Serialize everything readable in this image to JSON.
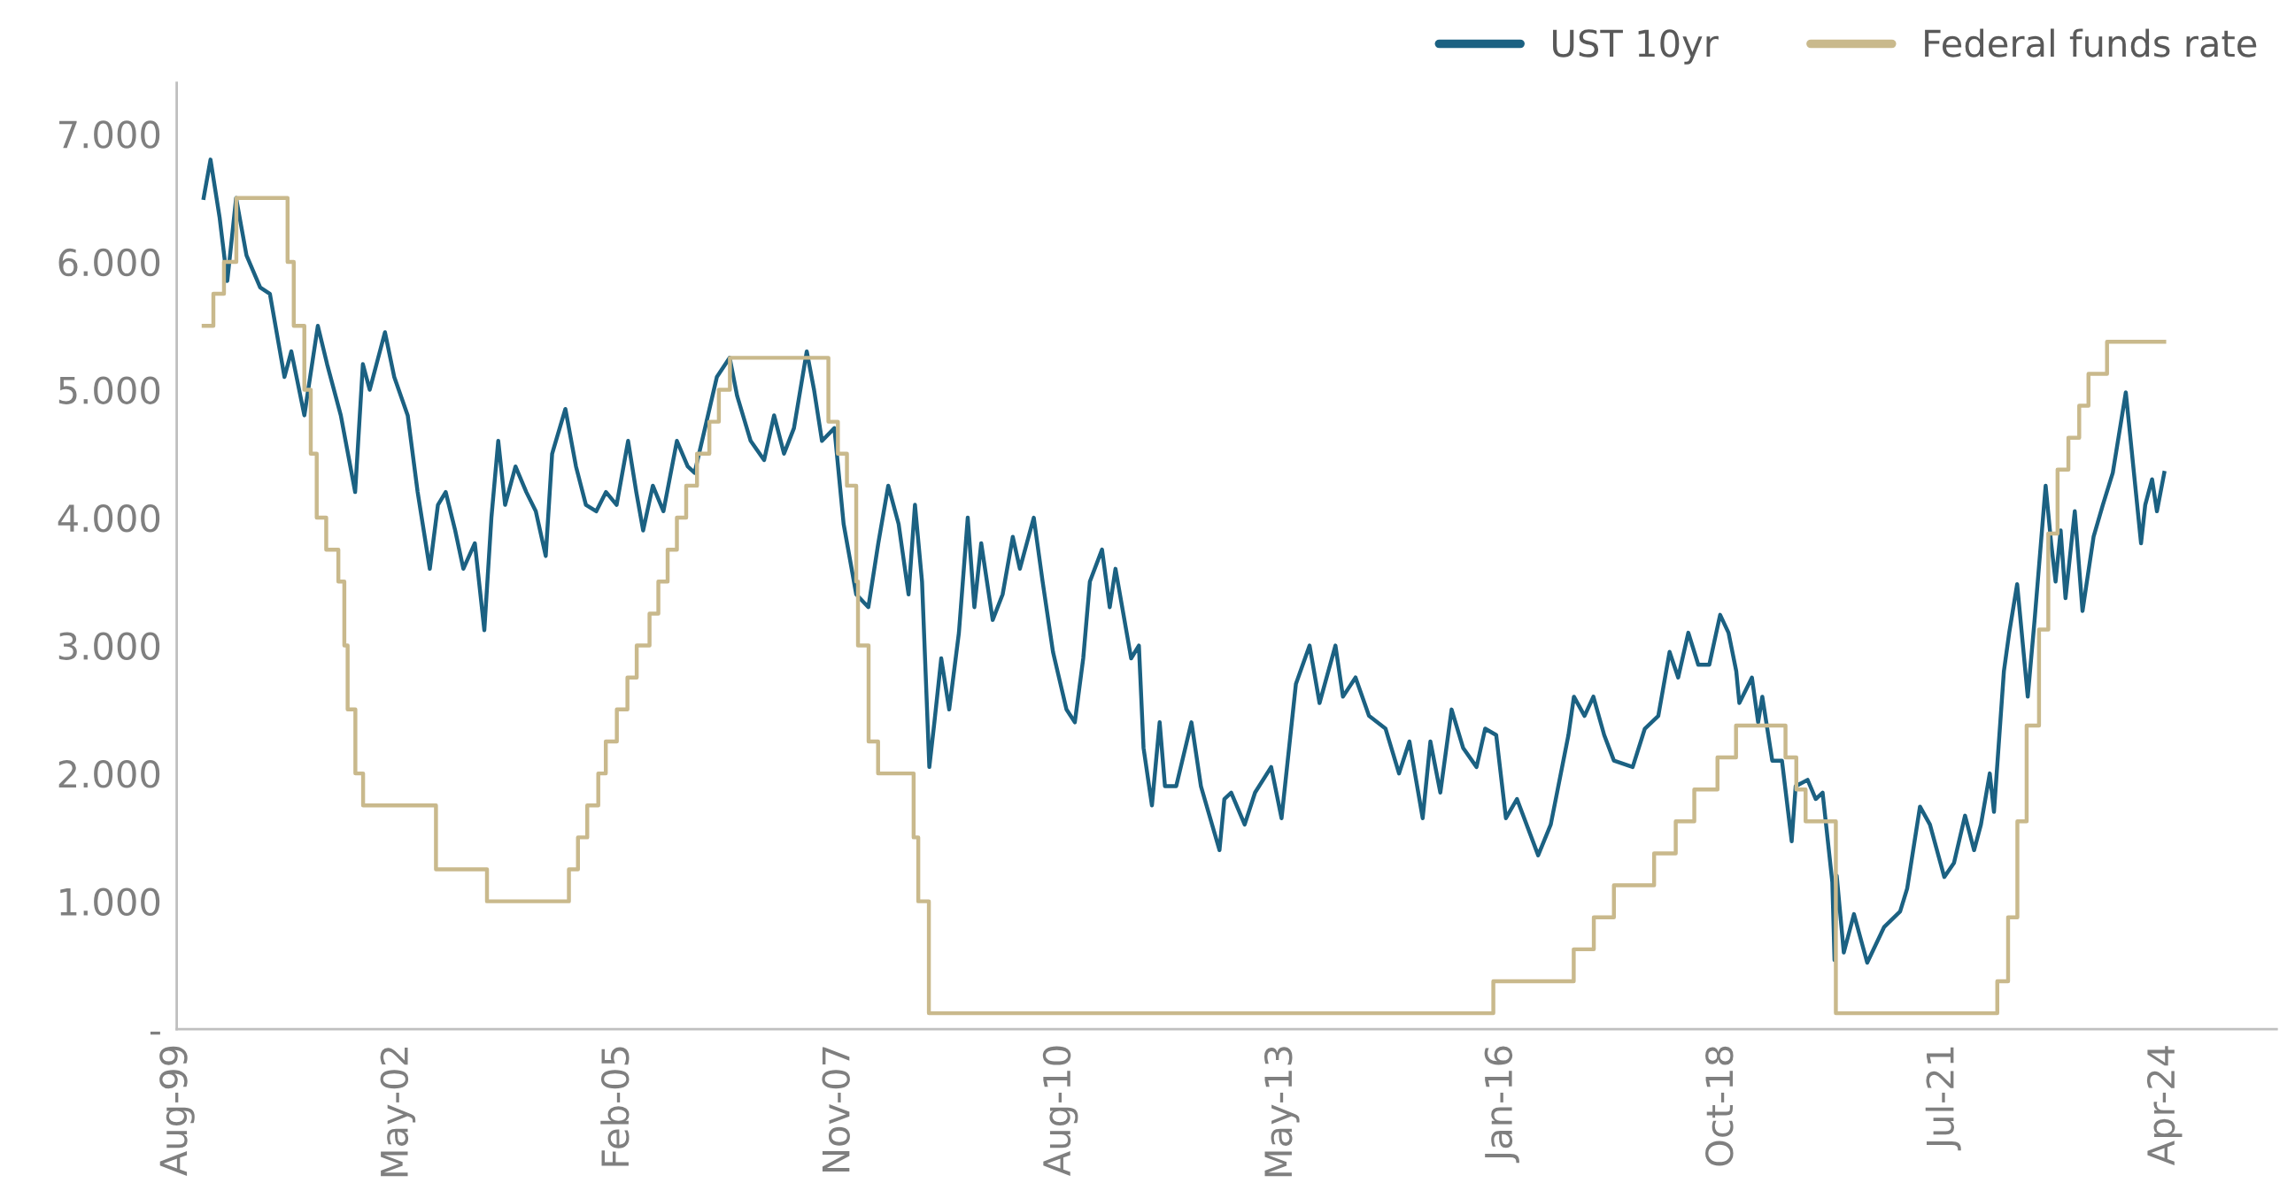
{
  "chart_data": {
    "type": "line",
    "xlim": [
      "1999-08-20",
      "2025-09-01"
    ],
    "xticks": [
      {
        "value": "1999-08-20",
        "label": "Aug-99"
      },
      {
        "value": "2002-05-16",
        "label": "May-02"
      },
      {
        "value": "2005-02-09",
        "label": "Feb-05"
      },
      {
        "value": "2007-11-06",
        "label": "Nov-07"
      },
      {
        "value": "2010-08-02",
        "label": "Aug-10"
      },
      {
        "value": "2013-05-01",
        "label": "May-13"
      },
      {
        "value": "2016-01-23",
        "label": "Jan-16"
      },
      {
        "value": "2018-10-19",
        "label": "Oct-18"
      },
      {
        "value": "2021-07-15",
        "label": "Jul-21"
      },
      {
        "value": "2024-04-10",
        "label": "Apr-24"
      }
    ],
    "ylim": [
      0,
      7.4
    ],
    "yticks": [
      {
        "value": 0,
        "label": "-"
      },
      {
        "value": 1,
        "label": "1.000"
      },
      {
        "value": 2,
        "label": "2.000"
      },
      {
        "value": 3,
        "label": "3.000"
      },
      {
        "value": 4,
        "label": "4.000"
      },
      {
        "value": 5,
        "label": "5.000"
      },
      {
        "value": 6,
        "label": "6.000"
      },
      {
        "value": 7,
        "label": "7.000"
      }
    ],
    "grid": false,
    "legend": "top right",
    "line_style": "solid",
    "series": [
      {
        "name": "UST 10yr",
        "color": "#1b6182",
        "x": [
          "1999-12-20",
          "2000-01-20",
          "2000-03-01",
          "2000-04-05",
          "2000-05-15",
          "2000-07-01",
          "2000-09-01",
          "2000-10-15",
          "2000-12-20",
          "2001-01-20",
          "2001-03-20",
          "2001-05-20",
          "2001-07-01",
          "2001-09-01",
          "2001-11-05",
          "2001-12-10",
          "2002-01-10",
          "2002-03-20",
          "2002-05-01",
          "2002-07-01",
          "2002-08-15",
          "2002-10-09",
          "2002-11-15",
          "2002-12-20",
          "2003-02-01",
          "2003-03-10",
          "2003-05-01",
          "2003-06-13",
          "2003-07-15",
          "2003-08-15",
          "2003-09-15",
          "2003-11-01",
          "2003-12-20",
          "2004-02-01",
          "2004-03-17",
          "2004-04-15",
          "2004-06-14",
          "2004-08-01",
          "2004-09-15",
          "2004-11-01",
          "2004-12-15",
          "2005-02-01",
          "2005-03-25",
          "2005-05-01",
          "2005-06-01",
          "2005-07-15",
          "2005-09-01",
          "2005-11-01",
          "2005-12-20",
          "2006-01-20",
          "2006-03-15",
          "2006-05-01",
          "2006-06-28",
          "2006-08-01",
          "2006-10-01",
          "2006-12-01",
          "2007-01-15",
          "2007-03-01",
          "2007-04-15",
          "2007-06-12",
          "2007-07-15",
          "2007-08-20",
          "2007-10-15",
          "2007-11-26",
          "2008-01-22",
          "2008-03-17",
          "2008-05-01",
          "2008-06-15",
          "2008-08-01",
          "2008-09-15",
          "2008-10-14",
          "2008-11-15",
          "2008-12-18",
          "2009-01-10",
          "2009-02-10",
          "2009-03-18",
          "2009-05-01",
          "2009-06-10",
          "2009-07-10",
          "2009-08-10",
          "2009-10-01",
          "2009-11-15",
          "2009-12-31",
          "2010-02-01",
          "2010-04-05",
          "2010-05-15",
          "2010-07-01",
          "2010-08-31",
          "2010-10-08",
          "2010-11-15",
          "2010-12-15",
          "2011-02-08",
          "2011-03-15",
          "2011-04-10",
          "2011-06-20",
          "2011-07-25",
          "2011-08-15",
          "2011-09-22",
          "2011-10-27",
          "2011-11-20",
          "2012-01-10",
          "2012-03-19",
          "2012-05-01",
          "2012-07-24",
          "2012-08-15",
          "2012-09-15",
          "2012-11-15",
          "2013-01-01",
          "2013-03-15",
          "2013-05-01",
          "2013-07-05",
          "2013-09-05",
          "2013-10-20",
          "2013-12-31",
          "2014-02-03",
          "2014-04-01",
          "2014-06-01",
          "2014-08-15",
          "2014-10-15",
          "2014-12-01",
          "2015-01-30",
          "2015-03-06",
          "2015-04-20",
          "2015-06-10",
          "2015-08-01",
          "2015-10-01",
          "2015-11-09",
          "2015-12-29",
          "2016-02-11",
          "2016-04-01",
          "2016-07-06",
          "2016-09-01",
          "2016-11-20",
          "2016-12-15",
          "2017-02-01",
          "2017-03-13",
          "2017-05-01",
          "2017-06-14",
          "2017-09-07",
          "2017-11-01",
          "2018-01-01",
          "2018-02-21",
          "2018-04-01",
          "2018-05-17",
          "2018-07-01",
          "2018-08-20",
          "2018-10-08",
          "2018-11-15",
          "2018-12-20",
          "2019-01-03",
          "2019-03-01",
          "2019-03-29",
          "2019-04-17",
          "2019-06-01",
          "2019-07-15",
          "2019-08-28",
          "2019-09-15",
          "2019-11-08",
          "2019-12-15",
          "2020-01-15",
          "2020-02-28",
          "2020-03-09",
          "2020-03-19",
          "2020-04-20",
          "2020-06-05",
          "2020-08-04",
          "2020-10-20",
          "2020-12-31",
          "2021-02-01",
          "2021-03-31",
          "2021-05-15",
          "2021-07-19",
          "2021-09-01",
          "2021-10-21",
          "2021-12-01",
          "2022-01-01",
          "2022-02-10",
          "2022-03-01",
          "2022-04-15",
          "2022-05-09",
          "2022-06-14",
          "2022-08-01",
          "2022-09-01",
          "2022-10-21",
          "2022-11-15",
          "2022-12-05",
          "2022-12-28",
          "2023-01-19",
          "2023-03-02",
          "2023-04-06",
          "2023-05-26",
          "2023-07-07",
          "2023-08-21",
          "2023-10-19",
          "2023-12-27",
          "2024-01-15",
          "2024-02-15",
          "2024-03-08",
          "2024-04-10"
        ],
        "values": [
          6.5,
          6.8,
          6.35,
          5.85,
          6.5,
          6.05,
          5.8,
          5.75,
          5.1,
          5.3,
          4.8,
          5.5,
          5.2,
          4.8,
          4.2,
          5.2,
          5.0,
          5.45,
          5.1,
          4.8,
          4.2,
          3.6,
          4.1,
          4.2,
          3.9,
          3.6,
          3.8,
          3.12,
          4.0,
          4.6,
          4.1,
          4.4,
          4.2,
          4.05,
          3.7,
          4.5,
          4.85,
          4.4,
          4.1,
          4.05,
          4.2,
          4.1,
          4.6,
          4.2,
          3.9,
          4.25,
          4.05,
          4.6,
          4.4,
          4.35,
          4.75,
          5.1,
          5.25,
          4.95,
          4.6,
          4.45,
          4.8,
          4.5,
          4.7,
          5.3,
          5.0,
          4.6,
          4.7,
          3.95,
          3.4,
          3.3,
          3.8,
          4.25,
          3.95,
          3.4,
          4.1,
          3.5,
          2.05,
          2.4,
          2.9,
          2.5,
          3.1,
          4.0,
          3.3,
          3.8,
          3.2,
          3.4,
          3.85,
          3.6,
          4.0,
          3.5,
          2.95,
          2.5,
          2.4,
          2.9,
          3.5,
          3.75,
          3.3,
          3.6,
          2.9,
          3.0,
          2.2,
          1.75,
          2.4,
          1.9,
          1.9,
          2.4,
          1.9,
          1.4,
          1.8,
          1.85,
          1.6,
          1.85,
          2.05,
          1.65,
          2.7,
          3.0,
          2.55,
          3.0,
          2.6,
          2.75,
          2.45,
          2.35,
          2.0,
          2.25,
          1.65,
          2.25,
          1.85,
          2.5,
          2.2,
          2.05,
          2.35,
          2.3,
          1.65,
          1.8,
          1.36,
          1.6,
          2.3,
          2.6,
          2.45,
          2.6,
          2.3,
          2.1,
          2.05,
          2.35,
          2.45,
          2.95,
          2.75,
          3.1,
          2.85,
          2.85,
          3.24,
          3.1,
          2.8,
          2.55,
          2.75,
          2.4,
          2.6,
          2.1,
          2.1,
          1.47,
          1.9,
          1.95,
          1.8,
          1.85,
          1.15,
          0.54,
          1.2,
          0.6,
          0.9,
          0.52,
          0.8,
          0.92,
          1.1,
          1.74,
          1.6,
          1.19,
          1.3,
          1.67,
          1.4,
          1.6,
          2.0,
          1.7,
          2.8,
          3.1,
          3.48,
          2.6,
          3.2,
          4.25,
          3.8,
          3.5,
          3.9,
          3.37,
          4.05,
          3.27,
          3.85,
          4.1,
          4.35,
          4.98,
          3.8,
          4.1,
          4.3,
          4.05,
          4.35
        ]
      },
      {
        "name": "Federal funds rate",
        "type": "step",
        "color": "#c9b98c",
        "x": [
          "1999-12-20",
          "2000-02-02",
          "2000-03-21",
          "2000-05-16",
          "2001-01-03",
          "2001-01-31",
          "2001-03-20",
          "2001-04-18",
          "2001-05-15",
          "2001-06-27",
          "2001-08-21",
          "2001-09-17",
          "2001-10-02",
          "2001-11-06",
          "2001-12-11",
          "2002-11-06",
          "2003-06-25",
          "2004-06-30",
          "2004-08-10",
          "2004-09-21",
          "2004-11-10",
          "2004-12-14",
          "2005-02-02",
          "2005-03-22",
          "2005-05-03",
          "2005-06-30",
          "2005-08-09",
          "2005-09-20",
          "2005-11-01",
          "2005-12-13",
          "2006-01-31",
          "2006-03-28",
          "2006-05-10",
          "2006-06-29",
          "2007-09-18",
          "2007-10-31",
          "2007-12-11",
          "2008-01-22",
          "2008-01-30",
          "2008-03-18",
          "2008-04-30",
          "2008-10-08",
          "2008-10-29",
          "2008-12-16",
          "2015-12-16",
          "2016-12-14",
          "2017-03-15",
          "2017-06-14",
          "2017-12-13",
          "2018-03-21",
          "2018-06-13",
          "2018-09-26",
          "2018-12-19",
          "2019-07-31",
          "2019-09-18",
          "2019-10-30",
          "2020-03-15",
          "2022-03-16",
          "2022-05-04",
          "2022-06-15",
          "2022-07-27",
          "2022-09-21",
          "2022-11-02",
          "2022-12-14",
          "2023-02-01",
          "2023-03-22",
          "2023-05-03",
          "2023-07-26",
          "2024-04-10"
        ],
        "values": [
          5.5,
          5.75,
          6.0,
          6.5,
          6.0,
          5.5,
          5.0,
          4.5,
          4.0,
          3.75,
          3.5,
          3.0,
          2.5,
          2.0,
          1.75,
          1.25,
          1.0,
          1.25,
          1.5,
          1.75,
          2.0,
          2.25,
          2.5,
          2.75,
          3.0,
          3.25,
          3.5,
          3.75,
          4.0,
          4.25,
          4.5,
          4.75,
          5.0,
          5.25,
          4.75,
          4.5,
          4.25,
          3.5,
          3.0,
          2.25,
          2.0,
          1.5,
          1.0,
          0.125,
          0.375,
          0.625,
          0.875,
          1.125,
          1.375,
          1.625,
          1.875,
          2.125,
          2.375,
          2.125,
          1.875,
          1.625,
          0.125,
          0.375,
          0.875,
          1.625,
          2.375,
          3.125,
          3.875,
          4.375,
          4.625,
          4.875,
          5.125,
          5.375,
          5.375
        ]
      }
    ]
  }
}
